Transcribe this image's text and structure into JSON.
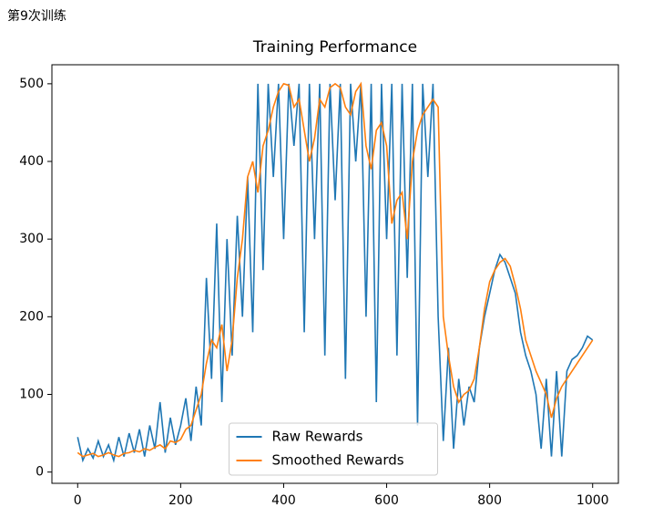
{
  "caption": "第9次训练",
  "chart_data": {
    "type": "line",
    "title": "Training Performance",
    "x": [
      0,
      10,
      20,
      30,
      40,
      50,
      60,
      70,
      80,
      90,
      100,
      110,
      120,
      130,
      140,
      150,
      160,
      170,
      180,
      190,
      200,
      210,
      220,
      230,
      240,
      250,
      260,
      270,
      280,
      290,
      300,
      310,
      320,
      330,
      340,
      350,
      360,
      370,
      380,
      390,
      400,
      410,
      420,
      430,
      440,
      450,
      460,
      470,
      480,
      490,
      500,
      510,
      520,
      530,
      540,
      550,
      560,
      570,
      580,
      590,
      600,
      610,
      620,
      630,
      640,
      650,
      660,
      670,
      680,
      690,
      700,
      710,
      720,
      730,
      740,
      750,
      760,
      770,
      780,
      790,
      800,
      810,
      820,
      830,
      840,
      850,
      860,
      870,
      880,
      890,
      900,
      910,
      920,
      930,
      940,
      950,
      960,
      970,
      980,
      990,
      1000
    ],
    "series": [
      {
        "name": "Raw Rewards",
        "color": "#1f77b4",
        "values": [
          45,
          15,
          30,
          18,
          40,
          20,
          35,
          15,
          45,
          20,
          50,
          25,
          55,
          20,
          60,
          30,
          90,
          25,
          70,
          35,
          60,
          95,
          40,
          110,
          60,
          250,
          120,
          320,
          90,
          300,
          150,
          330,
          200,
          380,
          180,
          500,
          260,
          500,
          380,
          500,
          300,
          500,
          420,
          500,
          180,
          500,
          300,
          500,
          150,
          500,
          350,
          500,
          120,
          500,
          400,
          500,
          200,
          500,
          90,
          500,
          300,
          500,
          150,
          500,
          250,
          500,
          60,
          500,
          380,
          500,
          200,
          40,
          160,
          30,
          120,
          60,
          110,
          90,
          160,
          200,
          230,
          260,
          280,
          270,
          250,
          230,
          180,
          150,
          130,
          100,
          30,
          120,
          20,
          130,
          20,
          130,
          145,
          150,
          160,
          175,
          170
        ]
      },
      {
        "name": "Smoothed Rewards",
        "color": "#ff7f0e",
        "values": [
          25,
          20,
          22,
          24,
          20,
          22,
          25,
          22,
          20,
          24,
          25,
          28,
          26,
          30,
          28,
          32,
          35,
          30,
          40,
          38,
          42,
          55,
          60,
          80,
          100,
          140,
          170,
          160,
          190,
          130,
          170,
          250,
          300,
          380,
          400,
          360,
          420,
          440,
          470,
          490,
          500,
          498,
          470,
          480,
          440,
          400,
          430,
          480,
          470,
          495,
          500,
          495,
          470,
          460,
          490,
          500,
          420,
          390,
          440,
          450,
          420,
          320,
          350,
          360,
          300,
          400,
          440,
          460,
          470,
          480,
          470,
          200,
          150,
          110,
          90,
          100,
          105,
          120,
          160,
          210,
          245,
          260,
          270,
          275,
          265,
          240,
          210,
          170,
          150,
          130,
          115,
          100,
          70,
          95,
          110,
          120,
          130,
          140,
          150,
          160,
          170
        ]
      }
    ],
    "xlim": [
      -50,
      1050
    ],
    "xticks": [
      0,
      200,
      400,
      600,
      800,
      1000
    ],
    "ylim": [
      -14.5,
      524.5
    ],
    "yticks": [
      0,
      100,
      200,
      300,
      400,
      500
    ],
    "legend": "lower center"
  }
}
